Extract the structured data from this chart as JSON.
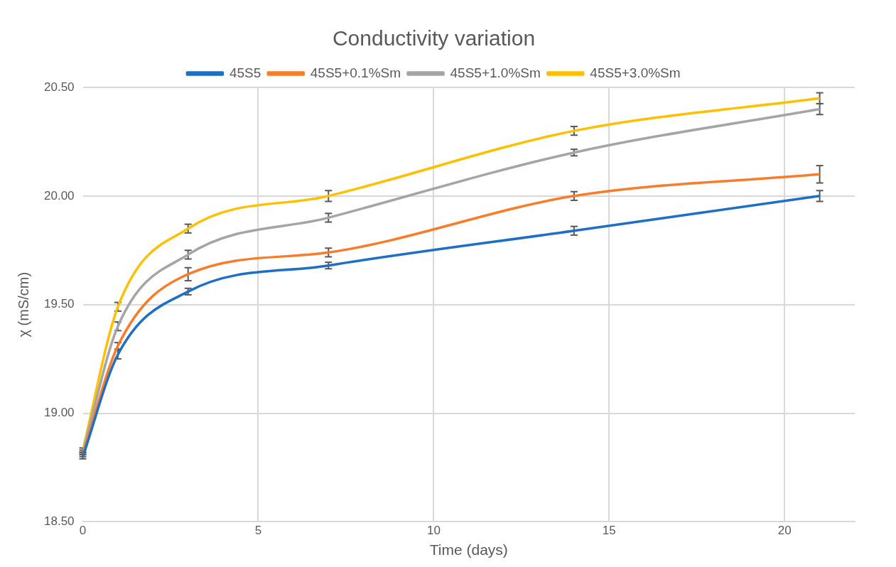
{
  "chart_data": {
    "type": "line",
    "title": "Conductivity variation",
    "xlabel": "Time (days)",
    "ylabel": "χ (mS/cm)",
    "x": [
      0,
      1,
      3,
      7,
      14,
      21
    ],
    "xlim": [
      0,
      22
    ],
    "xticks": [
      0,
      5,
      10,
      15,
      20
    ],
    "ylim": [
      18.5,
      20.5
    ],
    "yticks": [
      {
        "value": 18.5,
        "label": "18.50"
      },
      {
        "value": 19,
        "label": "19.00"
      },
      {
        "value": 19.5,
        "label": "19.50"
      },
      {
        "value": 20,
        "label": "20.00"
      },
      {
        "value": 20.5,
        "label": "20.50"
      }
    ],
    "grid": true,
    "legend": "top",
    "marker": "none",
    "line_style": "solid",
    "series": [
      {
        "name": "45S5",
        "color": "#1f6fc5",
        "values": [
          18.8,
          19.27,
          19.56,
          19.68,
          19.84,
          20.0
        ],
        "errors": [
          0.01,
          0.02,
          0.015,
          0.015,
          0.02,
          0.025
        ]
      },
      {
        "name": "45S5+0.1%Sm",
        "color": "#f87c2a",
        "values": [
          18.81,
          19.31,
          19.64,
          19.74,
          20.0,
          20.1
        ],
        "errors": [
          0.01,
          0.015,
          0.03,
          0.02,
          0.02,
          0.04
        ]
      },
      {
        "name": "45S5+1.0%Sm",
        "color": "#a5a5a5",
        "values": [
          18.82,
          19.4,
          19.73,
          19.9,
          20.2,
          20.4
        ],
        "errors": [
          0.01,
          0.02,
          0.02,
          0.02,
          0.015,
          0.025
        ]
      },
      {
        "name": "45S5+3.0%Sm",
        "color": "#fec000",
        "values": [
          18.83,
          19.49,
          19.85,
          20.0,
          20.3,
          20.45
        ],
        "errors": [
          0.01,
          0.02,
          0.02,
          0.025,
          0.02,
          0.025
        ]
      }
    ]
  }
}
